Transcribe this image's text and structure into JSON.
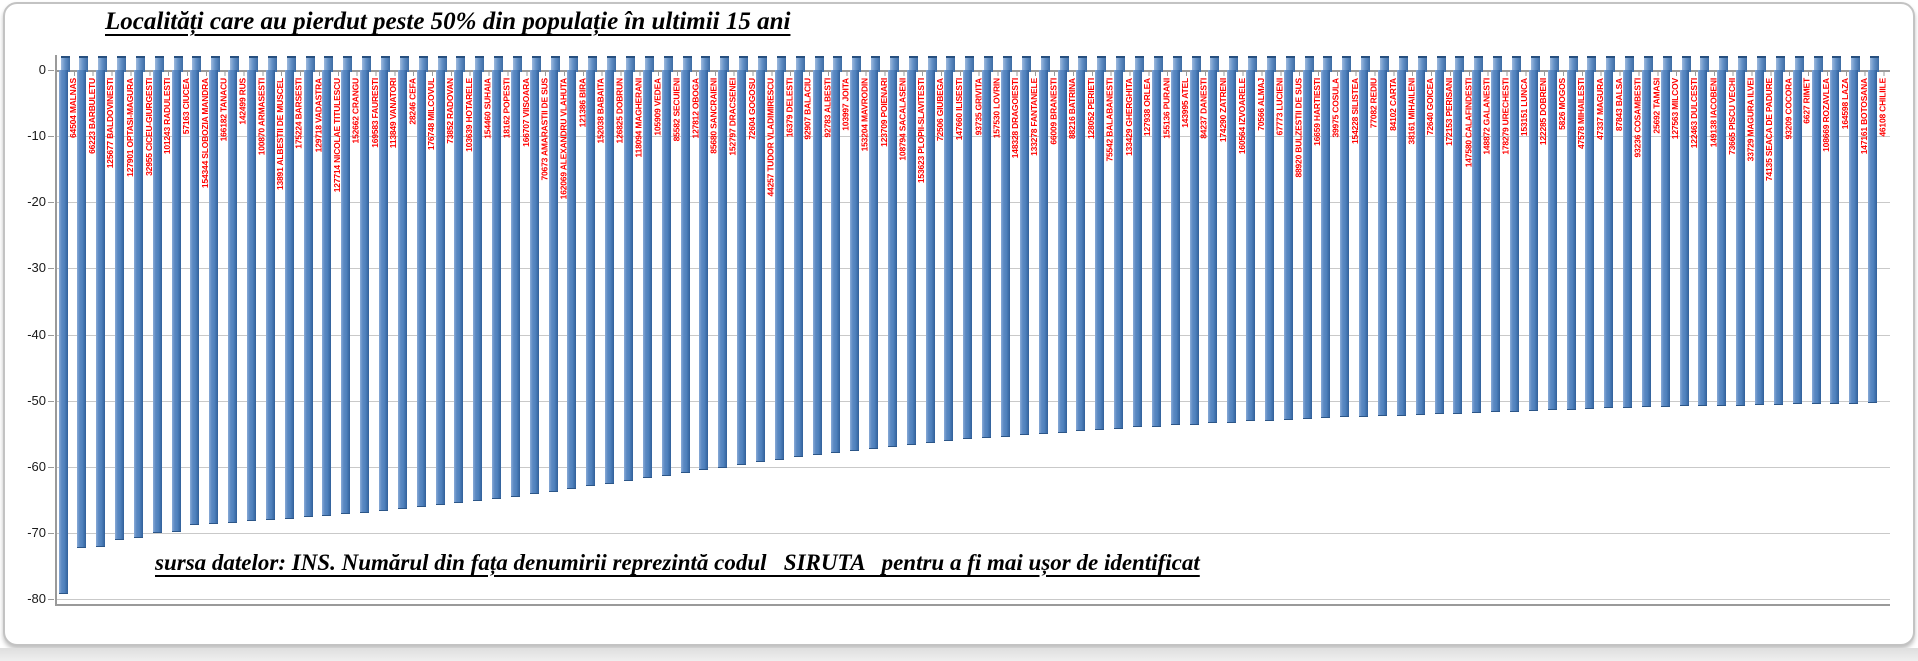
{
  "chart_data": {
    "type": "bar",
    "title": "Localități care au pierdut peste 50% din populație în ultimii 15 ani",
    "source_note": "sursa datelor: INS. Numărul din fața denumirii reprezintă codul   SIRUTA   pentru a fi mai ușor de identificat",
    "xlabel": "",
    "ylabel": "",
    "ylim": [
      -80,
      0
    ],
    "y_ticks": [
      0,
      -10,
      -20,
      -30,
      -40,
      -50,
      -60,
      -70,
      -80
    ],
    "grid": "horizontal",
    "legend": false,
    "bar_color": "#4f81bd",
    "category_label_color": "#ff0000",
    "categories": [
      "64504 MALNAS",
      "66223 BARBULETU",
      "125677 BALDOVINESTI",
      "127901 OPTASI-MAGURA",
      "32955 CICEU-GIURGESTI",
      "101243 RADULESTI",
      "57163 CIUCEA",
      "154344 SLOBOZIA MANDRA",
      "166182 TANACU",
      "142499 RUS",
      "100870 ARMASESTI",
      "13891 ALBESTII DE MUSCEL",
      "175224 BARSESTI",
      "129718 VADASTRA",
      "127714 NICOLAE TITULESCU",
      "152662 CRANGU",
      "169583 FAURESTI",
      "113849 VANATORI",
      "28246 CEFA",
      "176748 MILCOVUL",
      "73852 RADOVAN",
      "103639 HOTARELE",
      "154460 SUHAIA",
      "18162 POPESTI",
      "166707 VIISOARA",
      "70673 AMARASTII DE SUS",
      "162069 ALEXANDRU VLAHUTA",
      "121386 BIRA",
      "152038 BABAITA",
      "126825 DOBRUN",
      "118094 MAGHERANI",
      "105909 VEDEA",
      "85582 SECUIENI",
      "127812 OBOGA",
      "85680 SANCRAIENI",
      "152797 DRACSENEI",
      "72604 GOGOSU",
      "44257 TUDOR VLADIMIRESCU",
      "16379 DELESTI",
      "92907 BALACIU",
      "92783 ALBESTI",
      "103997 JOITA",
      "153204 MAVRODIN",
      "123709 POIENARI",
      "108794 SACALASENI",
      "153623 PLOPII-SLAVITESTI",
      "72506 GIUBEGA",
      "147660 ILISESTI",
      "93735 GRIVITA",
      "157530 LOVRIN",
      "148328 DRAGOIESTI",
      "133278 FANTANELE",
      "66009 BRANESTI",
      "88216 BATRINA",
      "128052 PERIETI",
      "75542 BALABANESTI",
      "133429 GHERGHITA",
      "127938 ORLEA",
      "155136 PURANI",
      "143995 ATEL",
      "84237 DANESTI",
      "174290 ZATRENI",
      "160564 IZVOARELE",
      "70566 ALMAJ",
      "67773 LUCIENI",
      "88920 BULZESTII DE SUS",
      "16659 HARTIESTI",
      "39975 COSULA",
      "154228 SILISTEA",
      "77082 REDIU",
      "84102 CARTA",
      "38161 MIHAILENI",
      "72640 GOICEA",
      "172153 PERISANI",
      "147580 CALAFINDESTI",
      "148872 GALANESTI",
      "178279 URECHESTI",
      "153151 LUNCA",
      "122285 DOBRENI",
      "5826 MOGOS",
      "47578 MIHAILESTI",
      "47337 MAGURA",
      "87843 BALSA",
      "93236 COSAMBESTI",
      "25692 TAMASI",
      "127563 MILCOV",
      "122463 DULCESTI",
      "149138 IACOBENI",
      "73665 PISCU VECHI",
      "33729 MAGURA ILVEI",
      "74135 SEACA DE PADURE",
      "93209 COCORA",
      "6627 RIMET",
      "108669 ROZAVLEA",
      "164598 LAZA",
      "147161 BOTOSANA",
      "46108 CHILIILE"
    ],
    "values": [
      -79.1,
      -72.2,
      -72.0,
      -70.9,
      -70.6,
      -69.9,
      -69.7,
      -68.7,
      -68.5,
      -68.3,
      -68.1,
      -67.9,
      -67.7,
      -67.5,
      -67.3,
      -67.0,
      -66.8,
      -66.5,
      -66.2,
      -65.9,
      -65.6,
      -65.3,
      -65.0,
      -64.7,
      -64.4,
      -64.0,
      -63.6,
      -63.2,
      -62.8,
      -62.4,
      -62.0,
      -61.6,
      -61.2,
      -60.8,
      -60.4,
      -60.0,
      -59.6,
      -59.2,
      -58.8,
      -58.4,
      -58.0,
      -57.7,
      -57.4,
      -57.1,
      -56.8,
      -56.5,
      -56.2,
      -55.9,
      -55.7,
      -55.5,
      -55.3,
      -55.1,
      -54.9,
      -54.7,
      -54.5,
      -54.3,
      -54.1,
      -53.9,
      -53.8,
      -53.6,
      -53.5,
      -53.3,
      -53.2,
      -53.0,
      -52.9,
      -52.8,
      -52.6,
      -52.5,
      -52.4,
      -52.3,
      -52.2,
      -52.1,
      -52.0,
      -51.9,
      -51.8,
      -51.7,
      -51.6,
      -51.5,
      -51.4,
      -51.3,
      -51.2,
      -51.1,
      -51.0,
      -50.9,
      -50.8,
      -50.8,
      -50.7,
      -50.7,
      -50.6,
      -50.6,
      -50.5,
      -50.5,
      -50.4,
      -50.4,
      -50.3,
      -50.3,
      -50.2
    ]
  },
  "y_axis": {
    "tick_labels": [
      "0",
      "-10",
      "-20",
      "-30",
      "-40",
      "-50",
      "-60",
      "-70",
      "-80"
    ]
  },
  "colors": {
    "bar": "#4f81bd",
    "bar_edge_dark": "#2c5688",
    "bar_edge_light": "#8aabd7",
    "category_label": "#ff0000",
    "gridline": "#c9c9c9",
    "axis": "#9a9a9a",
    "frame_border": "#c3c3c3",
    "text": "#000000"
  }
}
